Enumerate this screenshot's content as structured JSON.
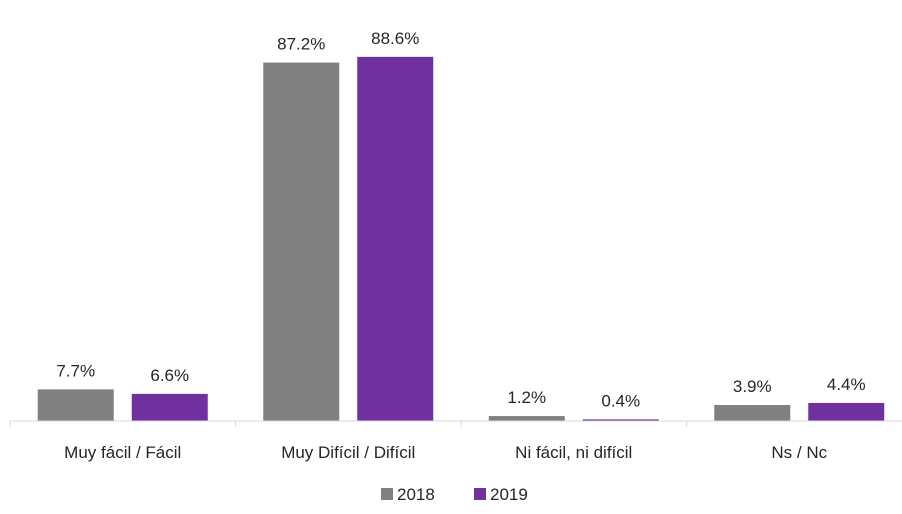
{
  "chart_data": {
    "type": "bar",
    "categories": [
      "Muy fácil / Fácil",
      "Muy Difícil / Difícil",
      "Ni fácil, ni difícil",
      "Ns / Nc"
    ],
    "series": [
      {
        "name": "2018",
        "values": [
          7.7,
          87.2,
          1.2,
          3.9
        ],
        "labels": [
          "7.7%",
          "87.2%",
          "1.2%",
          "3.9%"
        ],
        "color": "#808080"
      },
      {
        "name": "2019",
        "values": [
          6.6,
          88.6,
          0.4,
          4.4
        ],
        "labels": [
          "6.6%",
          "88.6%",
          "0.4%",
          "4.4%"
        ],
        "color": "#7030A0"
      }
    ],
    "ylim": [
      0,
      100
    ],
    "unit": "%",
    "grid": false,
    "legend": "bottom"
  }
}
